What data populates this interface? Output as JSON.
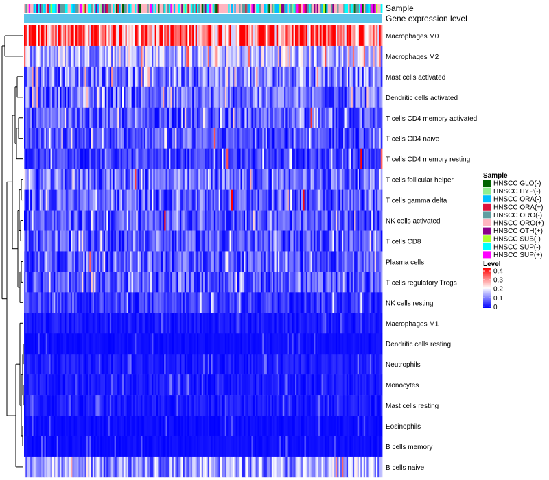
{
  "chart_data": {
    "type": "heatmap",
    "title": "",
    "annotation_tracks": [
      "Sample",
      "Gene expression level"
    ],
    "rows": [
      "Macrophages M0",
      "Macrophages M2",
      "Mast cells activated",
      "Dendritic cells activated",
      "T cells CD4 memory activated",
      "T cells CD4 naive",
      "T cells CD4 memory resting",
      "T cells follicular helper",
      "T cells gamma delta",
      "NK cells activated",
      "T cells CD8",
      "Plasma cells",
      "T cells regulatory  Tregs",
      "NK cells resting",
      "Macrophages M1",
      "Dendritic cells resting",
      "Neutrophils",
      "Monocytes",
      "Mast cells resting",
      "Eosinophils",
      "B cells memory",
      "B cells naive"
    ],
    "row_mean_levels": [
      0.32,
      0.14,
      0.1,
      0.09,
      0.07,
      0.06,
      0.05,
      0.09,
      0.08,
      0.07,
      0.07,
      0.07,
      0.07,
      0.05,
      0.02,
      0.01,
      0.02,
      0.02,
      0.02,
      0.01,
      0.01,
      0.12
    ],
    "num_samples": 230,
    "sample_legend": {
      "title": "Sample",
      "entries": [
        {
          "label": "HNSCC GLO(-)",
          "color": "#006400"
        },
        {
          "label": "HNSCC HYP(-)",
          "color": "#90ee90"
        },
        {
          "label": "HNSCC ORA(-)",
          "color": "#00bfff"
        },
        {
          "label": "HNSCC ORA(+)",
          "color": "#dc143c"
        },
        {
          "label": "HNSCC ORO(-)",
          "color": "#5f9ea0"
        },
        {
          "label": "HNSCC ORO(+)",
          "color": "#ffb6c1"
        },
        {
          "label": "HNSCC OTH(+)",
          "color": "#8b008b"
        },
        {
          "label": "HNSCC SUB(-)",
          "color": "#adff2f"
        },
        {
          "label": "HNSCC SUP(-)",
          "color": "#00ffff"
        },
        {
          "label": "HNSCC SUP(+)",
          "color": "#ff00ff"
        }
      ]
    },
    "level_legend": {
      "title": "Level",
      "ticks": [
        "0.4",
        "0.3",
        "0.2",
        "0.1",
        "0"
      ],
      "range": [
        0,
        0.4
      ],
      "colors": {
        "low": "#0000ff",
        "mid": "#ffffff",
        "high": "#ff0000"
      }
    },
    "gene_expression_track_color": "#5bc4e8"
  }
}
